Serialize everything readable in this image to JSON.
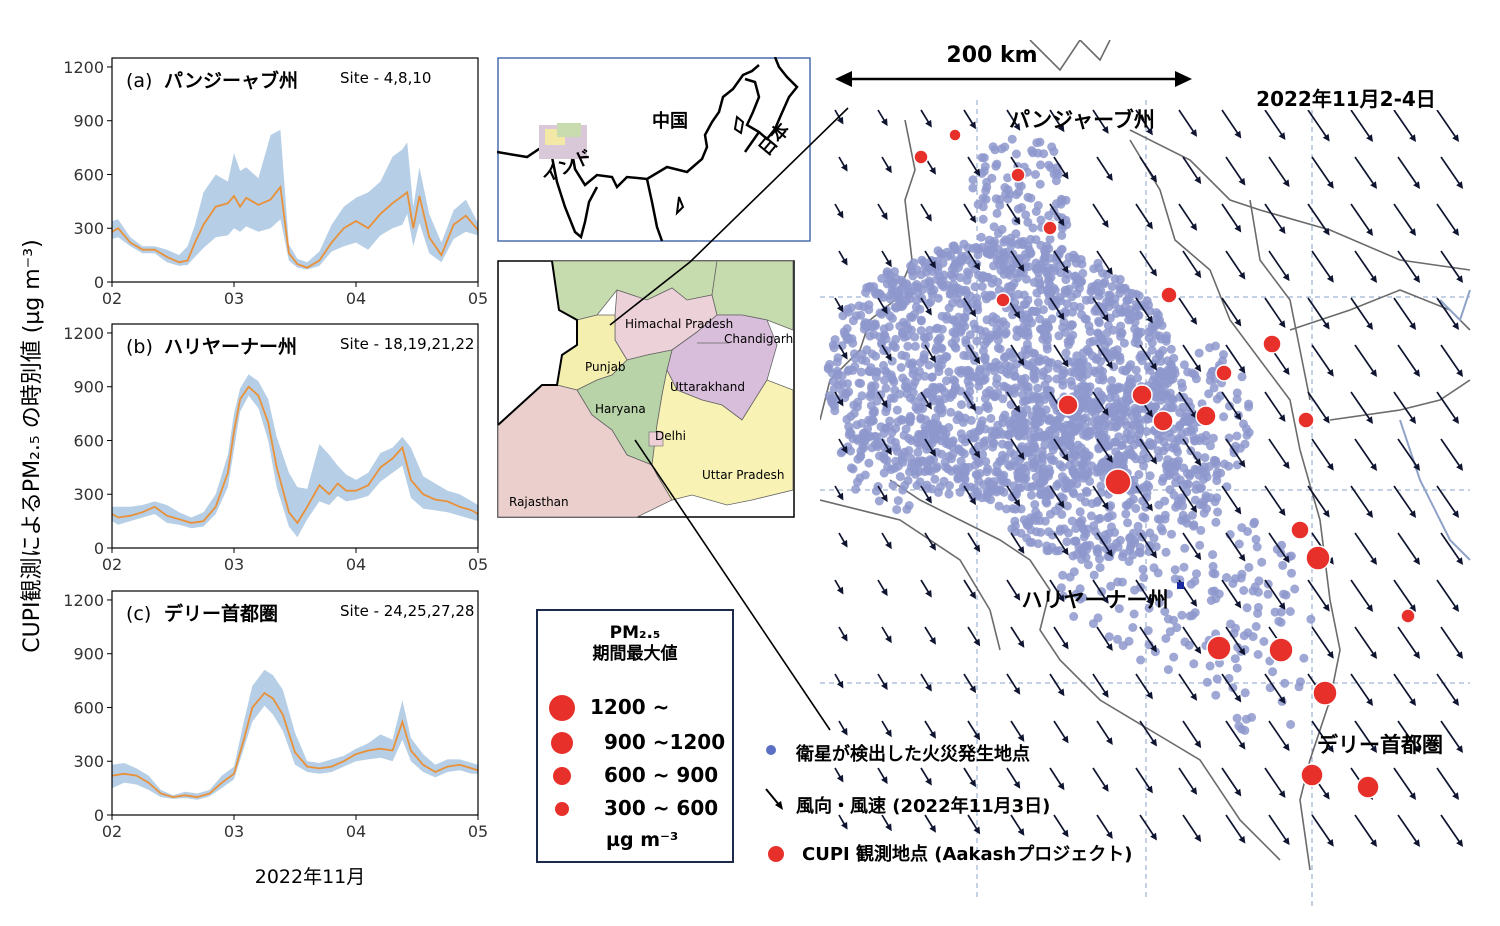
{
  "y_axis_label": "CUPI観測によるPM₂.₅ の時別値 (µg m⁻³)",
  "x_axis_label": "2022年11月",
  "chart_data": [
    {
      "type": "line",
      "panel": "(a)",
      "title": "パンジーャブ州",
      "sites": "Site - 4,8,10",
      "x_ticks": [
        "02",
        "03",
        "04",
        "05"
      ],
      "y_ticks": [
        "0",
        "300",
        "600",
        "900",
        "1200"
      ],
      "ylim": [
        0,
        1250
      ],
      "xlim": [
        2,
        5
      ],
      "line_color": "#e8913a",
      "band_color": "#b6cfe6",
      "x": [
        2.0,
        2.05,
        2.15,
        2.25,
        2.35,
        2.45,
        2.55,
        2.62,
        2.68,
        2.75,
        2.85,
        2.95,
        3.0,
        3.05,
        3.1,
        3.2,
        3.3,
        3.38,
        3.45,
        3.52,
        3.6,
        3.7,
        3.8,
        3.9,
        4.0,
        4.1,
        4.2,
        4.3,
        4.38,
        4.42,
        4.47,
        4.52,
        4.6,
        4.7,
        4.8,
        4.9,
        5.0
      ],
      "mean": [
        280,
        300,
        220,
        180,
        180,
        140,
        110,
        120,
        220,
        320,
        420,
        440,
        480,
        420,
        470,
        430,
        460,
        530,
        160,
        100,
        80,
        120,
        220,
        300,
        340,
        300,
        380,
        440,
        480,
        500,
        300,
        480,
        250,
        150,
        320,
        370,
        290
      ],
      "low": [
        240,
        250,
        200,
        160,
        160,
        110,
        90,
        95,
        140,
        190,
        250,
        260,
        300,
        280,
        310,
        280,
        300,
        350,
        120,
        80,
        70,
        90,
        170,
        200,
        220,
        180,
        260,
        300,
        320,
        380,
        200,
        330,
        160,
        110,
        240,
        280,
        260
      ],
      "high": [
        340,
        350,
        250,
        200,
        200,
        180,
        150,
        200,
        320,
        500,
        600,
        560,
        720,
        620,
        640,
        580,
        820,
        850,
        210,
        130,
        110,
        170,
        320,
        420,
        470,
        500,
        560,
        700,
        740,
        780,
        420,
        640,
        380,
        220,
        400,
        460,
        330
      ]
    },
    {
      "type": "line",
      "panel": "(b)",
      "title": "ハリヤーナー州",
      "sites": "Site - 18,19,21,22",
      "x_ticks": [
        "02",
        "03",
        "04",
        "05"
      ],
      "y_ticks": [
        "0",
        "300",
        "600",
        "900",
        "1200"
      ],
      "ylim": [
        0,
        1250
      ],
      "xlim": [
        2,
        5
      ],
      "line_color": "#e8913a",
      "band_color": "#b6cfe6",
      "x": [
        2.0,
        2.05,
        2.15,
        2.25,
        2.35,
        2.45,
        2.55,
        2.65,
        2.75,
        2.85,
        2.95,
        3.0,
        3.05,
        3.12,
        3.2,
        3.28,
        3.35,
        3.45,
        3.52,
        3.6,
        3.7,
        3.78,
        3.85,
        3.92,
        4.0,
        4.1,
        4.2,
        4.3,
        4.38,
        4.45,
        4.55,
        4.65,
        4.75,
        4.85,
        4.95,
        5.0
      ],
      "mean": [
        190,
        170,
        180,
        200,
        230,
        180,
        160,
        140,
        150,
        230,
        420,
        650,
        830,
        900,
        850,
        700,
        450,
        200,
        140,
        230,
        350,
        300,
        360,
        320,
        320,
        350,
        450,
        500,
        560,
        380,
        300,
        270,
        260,
        230,
        210,
        190
      ],
      "low": [
        150,
        130,
        150,
        170,
        190,
        140,
        130,
        110,
        120,
        190,
        340,
        550,
        760,
        850,
        780,
        600,
        340,
        120,
        60,
        160,
        260,
        240,
        290,
        260,
        270,
        290,
        370,
        420,
        460,
        280,
        220,
        210,
        200,
        180,
        160,
        150
      ],
      "high": [
        230,
        230,
        230,
        240,
        260,
        240,
        200,
        170,
        200,
        300,
        520,
        750,
        890,
        970,
        930,
        830,
        620,
        420,
        340,
        330,
        580,
        520,
        460,
        410,
        380,
        420,
        530,
        560,
        620,
        560,
        400,
        360,
        320,
        300,
        260,
        240
      ]
    },
    {
      "type": "line",
      "panel": "(c)",
      "title": "デリー首都圏",
      "sites": "Site - 24,25,27,28",
      "x_ticks": [
        "02",
        "03",
        "04",
        "05"
      ],
      "y_ticks": [
        "0",
        "300",
        "600",
        "900",
        "1200"
      ],
      "ylim": [
        0,
        1250
      ],
      "xlim": [
        2,
        5
      ],
      "line_color": "#e8913a",
      "band_color": "#b6cfe6",
      "x": [
        2.0,
        2.1,
        2.2,
        2.3,
        2.4,
        2.5,
        2.6,
        2.7,
        2.8,
        2.9,
        3.0,
        3.08,
        3.15,
        3.25,
        3.32,
        3.4,
        3.5,
        3.6,
        3.7,
        3.8,
        3.9,
        4.0,
        4.1,
        4.2,
        4.3,
        4.38,
        4.45,
        4.55,
        4.65,
        4.75,
        4.85,
        4.95,
        5.0
      ],
      "mean": [
        220,
        230,
        220,
        180,
        120,
        100,
        110,
        100,
        120,
        180,
        230,
        420,
        600,
        680,
        650,
        560,
        350,
        270,
        260,
        270,
        300,
        340,
        360,
        370,
        360,
        520,
        360,
        280,
        240,
        270,
        280,
        260,
        250
      ],
      "low": [
        150,
        180,
        170,
        140,
        100,
        90,
        95,
        85,
        105,
        150,
        200,
        370,
        520,
        610,
        560,
        470,
        280,
        240,
        230,
        240,
        270,
        300,
        310,
        320,
        300,
        420,
        300,
        240,
        210,
        240,
        250,
        230,
        230
      ],
      "high": [
        280,
        290,
        260,
        220,
        140,
        110,
        130,
        120,
        140,
        220,
        270,
        520,
        720,
        810,
        780,
        700,
        460,
        300,
        290,
        310,
        330,
        370,
        400,
        450,
        420,
        640,
        430,
        340,
        280,
        310,
        310,
        290,
        280
      ]
    }
  ],
  "map": {
    "scale_label": "200 km",
    "date_label": "2022年11月2-4日",
    "region_labels": [
      "パンジャーブ州",
      "ハリヤーナー州",
      "デリー首都圏"
    ],
    "inset_country_labels": [
      "中国",
      "インド",
      "日本"
    ],
    "inset_state_labels": [
      "Himachal Pradesh",
      "Chandigarh",
      "Punjab",
      "Uttarakhand",
      "Haryana",
      "Delhi",
      "Uttar Pradesh",
      "Rajasthan"
    ],
    "legend_fire": "衛星が検出した火災発生地点",
    "legend_wind": "風向・風速 (2022年11月3日)",
    "legend_cupi": "CUPI 観測地点 (Aakashプロジェクト)",
    "fire_color": "#8e98cc",
    "site_color": "#e8302a",
    "arrow_color": "#0f1530"
  },
  "pm_legend": {
    "title_line1": "PM₂.₅",
    "title_line2": "期間最大値",
    "items": [
      "1200 ~",
      "900 ~1200",
      "600 ~  900",
      "300 ~  600"
    ],
    "unit": "µg m⁻³"
  }
}
